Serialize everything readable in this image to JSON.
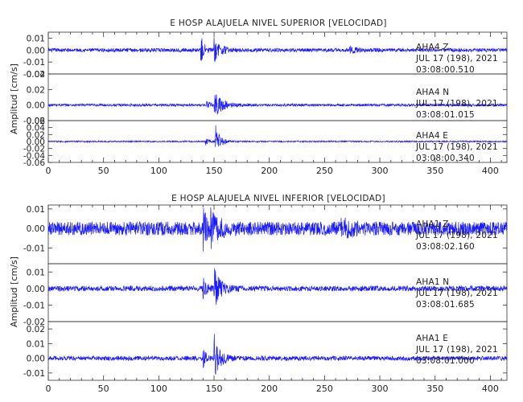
{
  "chart_data": [
    {
      "type": "line",
      "title": "E HOSP ALAJUELA NIVEL SUPERIOR [VELOCIDAD]",
      "ylabel": "Amplitud [cm/s]",
      "xlim": [
        0,
        415
      ],
      "xticks": [
        0,
        50,
        100,
        150,
        200,
        250,
        300,
        350,
        400
      ],
      "color": "#1a1aff",
      "grid": false,
      "panels": [
        {
          "name": "AHA4 Z",
          "label_line1": "AHA4    Z",
          "label_line2": "JUL 17 (198), 2021",
          "label_line3": "03:08:00.510",
          "ylim": [
            -0.02,
            0.015
          ],
          "yticks": [
            "0.01",
            "0.00",
            "-0.01",
            "-0.02"
          ],
          "ytick_values": [
            0.01,
            0.0,
            -0.01,
            -0.02
          ],
          "noise_amp": 0.0015,
          "events": [
            {
              "t": 138,
              "amp": 0.012,
              "decay": 3
            },
            {
              "t": 150,
              "amp": 0.009,
              "decay": 6
            },
            {
              "t": 272,
              "amp": 0.002,
              "decay": 10
            }
          ]
        },
        {
          "name": "AHA4 N",
          "label_line1": "AHA4    N",
          "label_line2": "JUL 17 (198), 2021",
          "label_line3": "03:08:01.015",
          "ylim": [
            -0.02,
            0.04
          ],
          "yticks": [
            "0.04",
            "0.02",
            "0.00",
            "-0.02"
          ],
          "ytick_values": [
            0.04,
            0.02,
            0.0,
            -0.02
          ],
          "noise_amp": 0.0016,
          "events": [
            {
              "t": 143,
              "amp": 0.007,
              "decay": 3
            },
            {
              "t": 150,
              "amp": 0.017,
              "decay": 7
            }
          ]
        },
        {
          "name": "AHA4 E",
          "label_line1": "AHA4    E",
          "label_line2": "JUL 17 (198), 2021",
          "label_line3": "03:08:00.340",
          "ylim": [
            -0.06,
            0.06
          ],
          "yticks": [
            "0.06",
            "0.04",
            "0.02",
            "0.00",
            "-0.02",
            "-0.04",
            "-0.06"
          ],
          "ytick_values": [
            0.06,
            0.04,
            0.02,
            0.0,
            -0.02,
            -0.04,
            -0.06
          ],
          "noise_amp": 0.002,
          "events": [
            {
              "t": 142,
              "amp": 0.01,
              "decay": 3
            },
            {
              "t": 151,
              "amp": 0.05,
              "decay": 4
            }
          ]
        }
      ]
    },
    {
      "type": "line",
      "title": "E HOSP ALAJUELA NIVEL INFERIOR [VELOCIDAD]",
      "ylabel": "Amplitud [cm/s]",
      "xlim": [
        0,
        415
      ],
      "xticks": [
        0,
        50,
        100,
        150,
        200,
        250,
        300,
        350,
        400
      ],
      "color": "#1a1aff",
      "grid": false,
      "panels": [
        {
          "name": "AHA1 Z",
          "label_line1": "AHA1    Z",
          "label_line2": "JUL 17 (198), 2021",
          "label_line3": "03:08:02.160",
          "ylim": [
            -0.018,
            0.012
          ],
          "yticks": [
            "0.01",
            "0.00",
            "-0.01"
          ],
          "ytick_values": [
            0.01,
            0.0,
            -0.01
          ],
          "noise_amp": 0.0035,
          "events": [
            {
              "t": 140,
              "amp": 0.011,
              "decay": 3
            },
            {
              "t": 147,
              "amp": 0.01,
              "decay": 6
            },
            {
              "t": 265,
              "amp": 0.003,
              "decay": 12
            }
          ]
        },
        {
          "name": "AHA1 N",
          "label_line1": "AHA1    N",
          "label_line2": "JUL 17 (198), 2021",
          "label_line3": "03:08:01.685",
          "ylim": [
            -0.02,
            0.015
          ],
          "yticks": [
            "0.01",
            "0.00",
            "-0.01",
            "-0.02"
          ],
          "ytick_values": [
            0.01,
            0.0,
            -0.01,
            -0.02
          ],
          "noise_amp": 0.0016,
          "events": [
            {
              "t": 140,
              "amp": 0.006,
              "decay": 3
            },
            {
              "t": 150,
              "amp": 0.012,
              "decay": 6
            }
          ]
        },
        {
          "name": "AHA1 E",
          "label_line1": "AHA1    E",
          "label_line2": "JUL 17 (198), 2021",
          "label_line3": "03:08:01.000",
          "ylim": [
            -0.015,
            0.025
          ],
          "yticks": [
            "0.02",
            "0.01",
            "0.00",
            "-0.01"
          ],
          "ytick_values": [
            0.02,
            0.01,
            0.0,
            -0.01
          ],
          "noise_amp": 0.0015,
          "events": [
            {
              "t": 140,
              "amp": 0.006,
              "decay": 3
            },
            {
              "t": 150,
              "amp": 0.016,
              "decay": 5
            }
          ]
        }
      ]
    }
  ]
}
